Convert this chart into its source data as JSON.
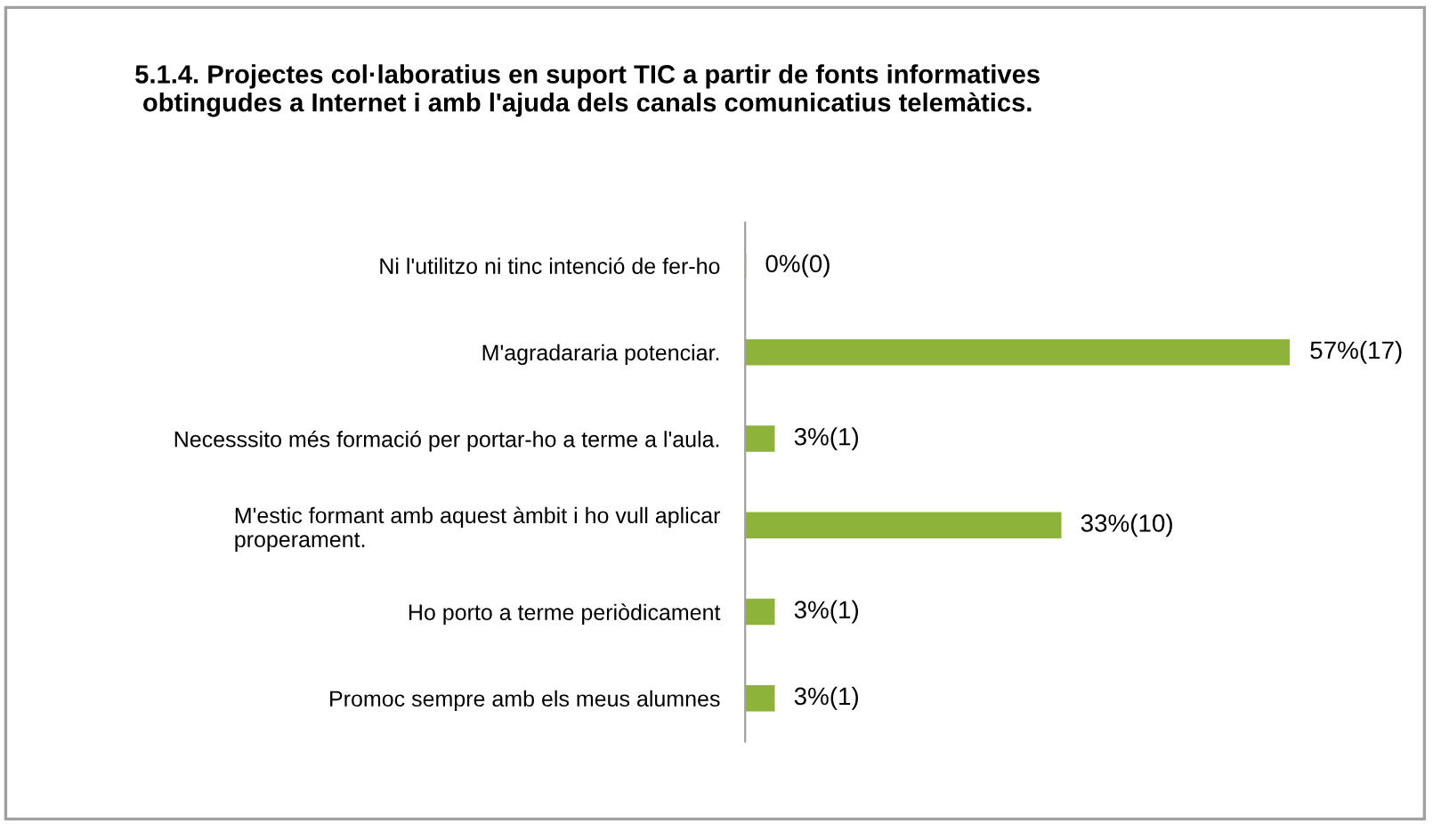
{
  "chart_data": {
    "type": "bar",
    "orientation": "horizontal",
    "title": "5.1.4. Projectes col·laboratius en suport TIC a partir de fonts informatives\nobtingudes a Internet i amb l'ajuda dels canals comunicatius telemàtics.",
    "categories": [
      "Ni l'utilitzo ni tinc intenció de fer-ho",
      "M'agradararia potenciar.",
      "Necesssito més formació per portar-ho a terme a l'aula.",
      "M'estic formant amb aquest àmbit i ho vull aplicar\nproperament.",
      "Ho porto a terme periòdicament",
      "Promoc sempre amb els meus alumnes"
    ],
    "values": [
      0,
      57,
      3,
      33,
      3,
      3
    ],
    "value_labels": [
      "0%(0)",
      "57%(17)",
      "3%(1)",
      "33%(10)",
      "3%(1)",
      "3%(1)"
    ],
    "color": "#8db33a",
    "tick_labels": "y",
    "grid": false,
    "legend": false
  }
}
